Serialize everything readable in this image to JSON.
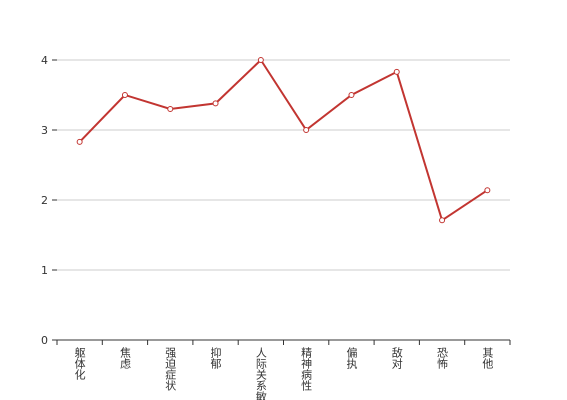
{
  "chart_data": {
    "type": "line",
    "categories": [
      "躯体化",
      "焦虑",
      "强迫症状",
      "抑郁",
      "人际关系敏感",
      "精神病性",
      "偏执",
      "敌对",
      "恐怖",
      "其他"
    ],
    "series": [
      {
        "color": "#c23531",
        "values": [
          2.83,
          3.5,
          3.3,
          3.38,
          4.0,
          3.0,
          3.5,
          3.83,
          1.71,
          2.14
        ]
      }
    ],
    "ylim": [
      0,
      4
    ],
    "yticks": [
      0,
      1,
      2,
      3,
      4
    ],
    "grid": true
  }
}
